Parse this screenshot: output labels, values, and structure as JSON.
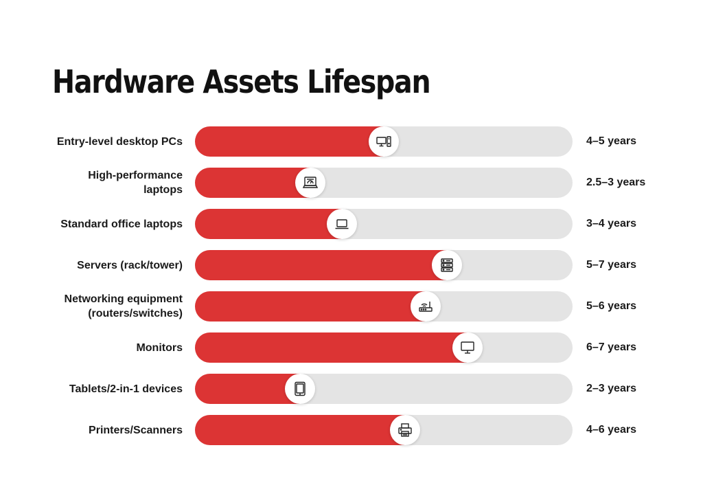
{
  "title": "Hardware Assets Lifespan",
  "colors": {
    "fill": "#dc3434",
    "track": "#e4e4e4",
    "text": "#111111"
  },
  "chart_data": {
    "type": "bar",
    "title": "Hardware Assets Lifespan",
    "orientation": "horizontal",
    "xlim": [
      0,
      9
    ],
    "categories": [
      "Entry-level desktop PCs",
      "High-performance laptops",
      "Standard office laptops",
      "Servers (rack/tower)",
      "Networking equipment (routers/switches)",
      "Monitors",
      "Tablets/2-in-1 devices",
      "Printers/Scanners"
    ],
    "values": [
      4.5,
      2.75,
      3.5,
      6,
      5.5,
      6.5,
      2.5,
      5
    ],
    "value_labels": [
      "4–5 years",
      "2.5–3 years",
      "3–4 years",
      "5–7 years",
      "5–6 years",
      "6–7 years",
      "2–3 years",
      "4–6 years"
    ],
    "icons": [
      "desktop-pc-icon",
      "performance-laptop-icon",
      "laptop-icon",
      "server-icon",
      "router-icon",
      "monitor-icon",
      "tablet-icon",
      "printer-icon"
    ]
  },
  "rows": [
    {
      "label": "Entry-level desktop PCs",
      "value": "4–5 years"
    },
    {
      "label": "High-performance laptops",
      "value": "2.5–3 years"
    },
    {
      "label": "Standard office laptops",
      "value": "3–4 years"
    },
    {
      "label": "Servers (rack/tower)",
      "value": "5–7 years"
    },
    {
      "label": "Networking equipment (routers/switches)",
      "value": "5–6 years"
    },
    {
      "label": "Monitors",
      "value": "6–7 years"
    },
    {
      "label": "Tablets/2-in-1 devices",
      "value": "2–3 years"
    },
    {
      "label": "Printers/Scanners",
      "value": "4–6 years"
    }
  ]
}
